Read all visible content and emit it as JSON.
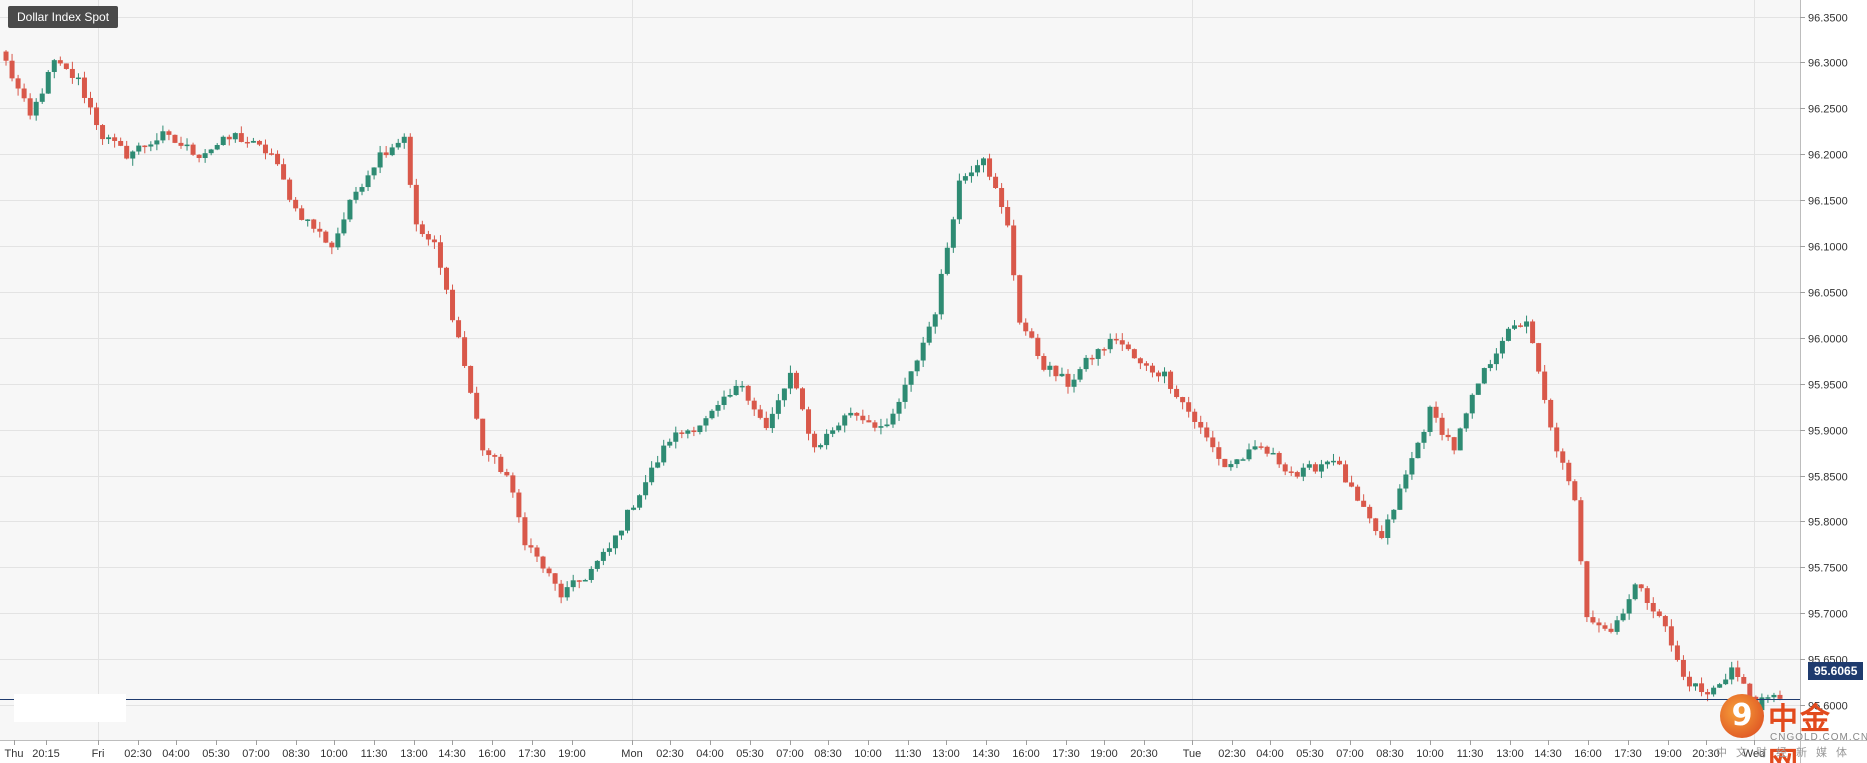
{
  "chart_data": {
    "type": "candlestick",
    "title": "Dollar Index Spot",
    "current_price": "95.6065",
    "y_ticks": [
      "96.3500",
      "96.3000",
      "96.2500",
      "96.2000",
      "96.1500",
      "96.1000",
      "96.0500",
      "96.0000",
      "95.9500",
      "95.9000",
      "95.8500",
      "95.8000",
      "95.7500",
      "95.7000",
      "95.6500",
      "95.6000"
    ],
    "y_tick_values": [
      96.35,
      96.3,
      96.25,
      96.2,
      96.15,
      96.1,
      96.05,
      96.0,
      95.95,
      95.9,
      95.85,
      95.8,
      95.75,
      95.7,
      95.65,
      95.6
    ],
    "ylim": [
      95.562,
      96.368
    ],
    "x_labels": [
      "Thu",
      "20:15",
      "Fri",
      "02:30",
      "04:00",
      "05:30",
      "07:00",
      "08:30",
      "10:00",
      "11:30",
      "13:00",
      "14:30",
      "16:00",
      "17:30",
      "19:00",
      "Mon",
      "02:30",
      "04:00",
      "05:30",
      "07:00",
      "08:30",
      "10:00",
      "11:30",
      "13:00",
      "14:30",
      "16:00",
      "17:30",
      "19:00",
      "20:30",
      "Tue",
      "02:30",
      "04:00",
      "05:30",
      "07:00",
      "08:30",
      "10:00",
      "11:30",
      "13:00",
      "14:30",
      "16:00",
      "17:30",
      "19:00",
      "20:30",
      "Wed"
    ],
    "session_starts": [
      "Thu",
      "Fri",
      "Mon",
      "Tue",
      "Wed"
    ],
    "grid": true,
    "bull_color": "#2e8b73",
    "bear_color": "#d9584a",
    "price_line_color": "#1f3b6e",
    "waypoints": [
      [
        0,
        96.3
      ],
      [
        4,
        96.24
      ],
      [
        8,
        96.3
      ],
      [
        12,
        96.28
      ],
      [
        16,
        96.22
      ],
      [
        20,
        96.2
      ],
      [
        26,
        96.22
      ],
      [
        32,
        96.2
      ],
      [
        38,
        96.22
      ],
      [
        44,
        96.2
      ],
      [
        48,
        96.14
      ],
      [
        54,
        96.1
      ],
      [
        58,
        96.16
      ],
      [
        62,
        96.2
      ],
      [
        66,
        96.22
      ],
      [
        68,
        96.12
      ],
      [
        71,
        96.1
      ],
      [
        75,
        96.0
      ],
      [
        79,
        95.88
      ],
      [
        83,
        95.85
      ],
      [
        86,
        95.78
      ],
      [
        92,
        95.72
      ],
      [
        96,
        95.74
      ],
      [
        100,
        95.77
      ],
      [
        104,
        95.82
      ],
      [
        110,
        95.89
      ],
      [
        116,
        95.91
      ],
      [
        122,
        95.95
      ],
      [
        126,
        95.9
      ],
      [
        130,
        95.96
      ],
      [
        134,
        95.88
      ],
      [
        140,
        95.92
      ],
      [
        146,
        95.9
      ],
      [
        150,
        95.96
      ],
      [
        154,
        96.03
      ],
      [
        158,
        96.17
      ],
      [
        162,
        96.2
      ],
      [
        166,
        96.12
      ],
      [
        168,
        96.02
      ],
      [
        172,
        95.97
      ],
      [
        176,
        95.95
      ],
      [
        180,
        95.98
      ],
      [
        184,
        96.0
      ],
      [
        188,
        95.97
      ],
      [
        192,
        95.96
      ],
      [
        196,
        95.92
      ],
      [
        202,
        95.86
      ],
      [
        208,
        95.88
      ],
      [
        214,
        95.85
      ],
      [
        220,
        95.87
      ],
      [
        224,
        95.82
      ],
      [
        228,
        95.78
      ],
      [
        232,
        95.85
      ],
      [
        236,
        95.92
      ],
      [
        240,
        95.88
      ],
      [
        244,
        95.95
      ],
      [
        248,
        96.0
      ],
      [
        252,
        96.02
      ],
      [
        256,
        95.9
      ],
      [
        260,
        95.82
      ],
      [
        262,
        95.7
      ],
      [
        266,
        95.68
      ],
      [
        270,
        95.73
      ],
      [
        274,
        95.7
      ],
      [
        278,
        95.63
      ],
      [
        282,
        95.61
      ],
      [
        286,
        95.64
      ],
      [
        290,
        95.6
      ],
      [
        294,
        95.61
      ]
    ]
  }
}
